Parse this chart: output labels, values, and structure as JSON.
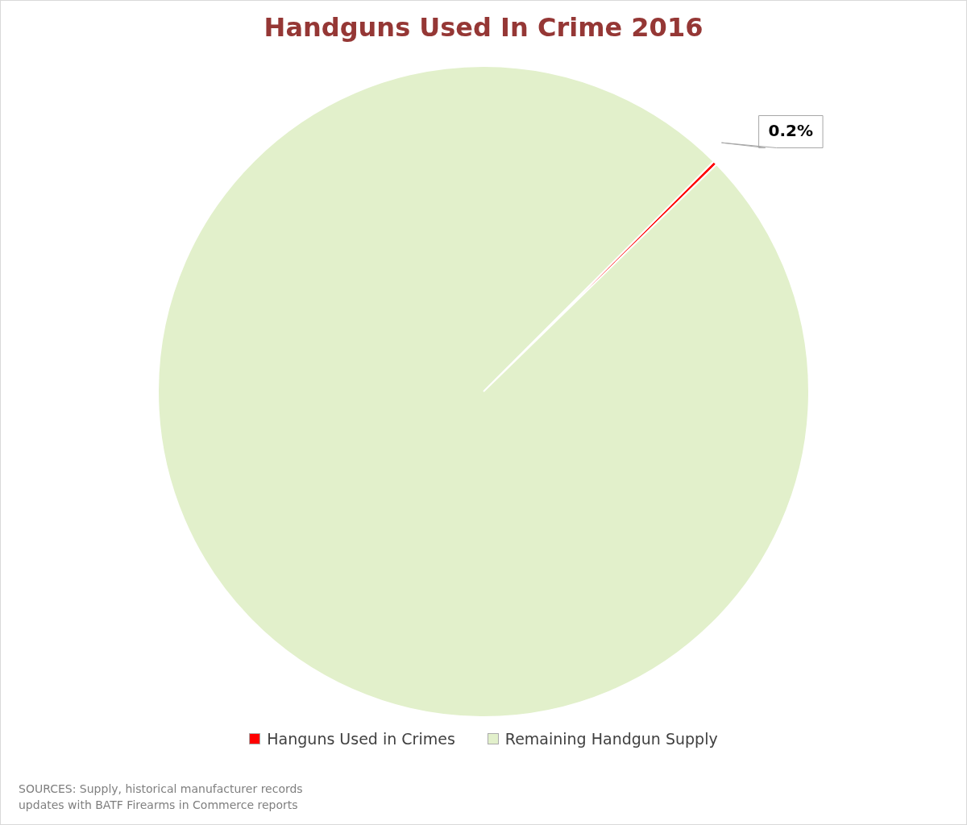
{
  "chart_data": {
    "type": "pie",
    "title": "Handguns Used In Crime 2016",
    "categories": [
      "Hanguns Used in Crimes",
      "Remaining Handgun Supply"
    ],
    "values": [
      0.2,
      99.8
    ],
    "colors": [
      "#ff0000",
      "#e2f0cb"
    ],
    "value_labels": [
      "0.2%",
      null
    ],
    "legend": "bottom",
    "annotations": [
      "SOURCES: Supply, historical manufacturer records updates with BATF Firearms in Commerce reports"
    ]
  }
}
